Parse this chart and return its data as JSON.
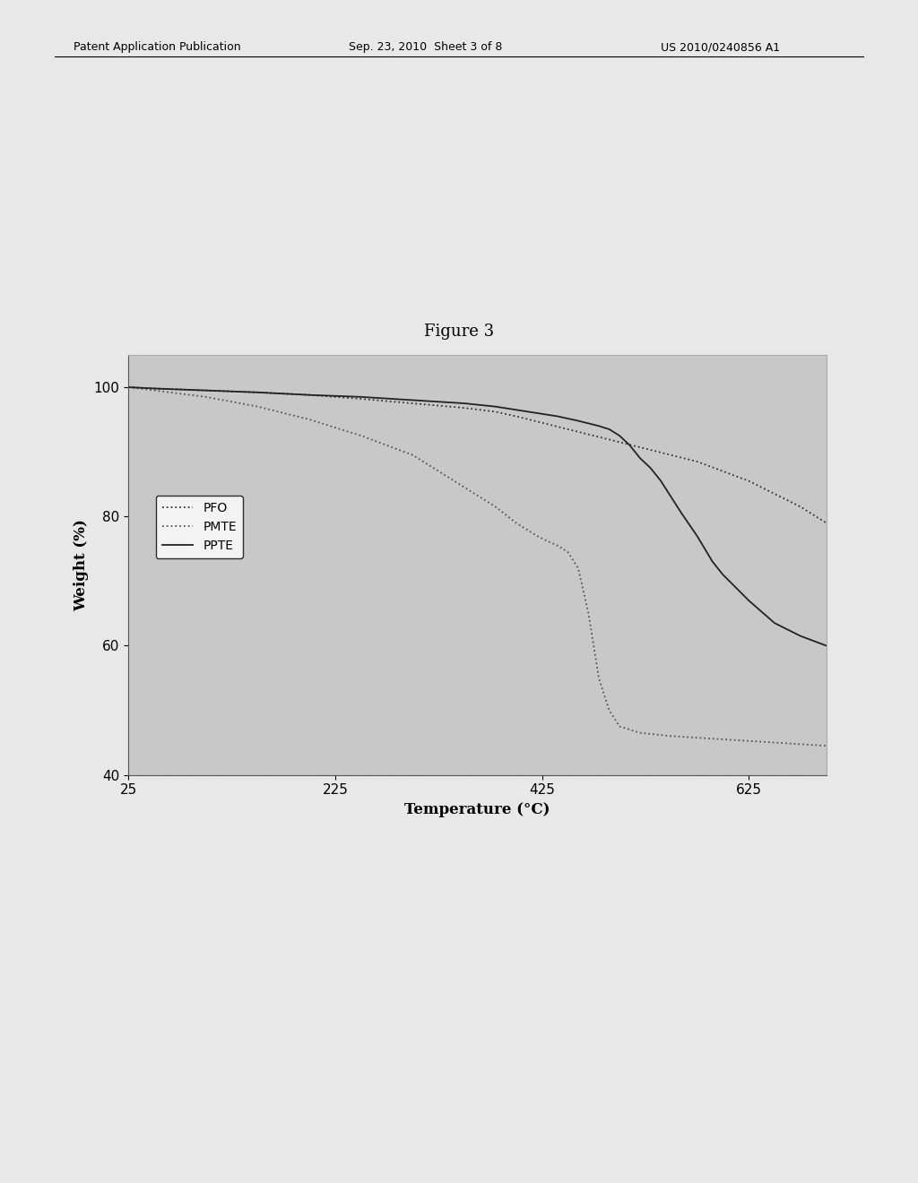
{
  "title": "Figure 3",
  "xlabel": "Temperature (°C)",
  "ylabel": "Weight (%)",
  "xlim": [
    25,
    700
  ],
  "ylim": [
    40,
    105
  ],
  "xticks": [
    25,
    225,
    425,
    625
  ],
  "yticks": [
    40,
    60,
    80,
    100
  ],
  "plot_bg_color": "#c8c8c8",
  "page_color": "#e8e8e8",
  "header_left": "Patent Application Publication",
  "header_mid": "Sep. 23, 2010  Sheet 3 of 8",
  "header_right": "US 2010/0240856 A1",
  "series": [
    {
      "name": "PFO",
      "color": "#333333",
      "linestyle": "dotted",
      "data_x": [
        25,
        50,
        100,
        150,
        200,
        250,
        300,
        350,
        380,
        400,
        425,
        450,
        475,
        500,
        525,
        550,
        575,
        600,
        625,
        650,
        675,
        700
      ],
      "data_y": [
        100,
        99.8,
        99.5,
        99.2,
        98.8,
        98.2,
        97.5,
        96.8,
        96.2,
        95.5,
        94.5,
        93.5,
        92.5,
        91.5,
        90.5,
        89.5,
        88.5,
        87.0,
        85.5,
        83.5,
        81.5,
        79.0
      ]
    },
    {
      "name": "PMTE",
      "color": "#555555",
      "linestyle": "dotted",
      "data_x": [
        25,
        50,
        100,
        150,
        200,
        250,
        300,
        320,
        340,
        360,
        380,
        400,
        410,
        420,
        430,
        440,
        450,
        460,
        470,
        480,
        490,
        500,
        520,
        550,
        600,
        650,
        700
      ],
      "data_y": [
        100,
        99.5,
        98.5,
        97.0,
        95.0,
        92.5,
        89.5,
        87.5,
        85.5,
        83.5,
        81.5,
        79.0,
        78.0,
        77.0,
        76.2,
        75.5,
        74.5,
        72.0,
        65.0,
        55.0,
        50.0,
        47.5,
        46.5,
        46.0,
        45.5,
        45.0,
        44.5
      ]
    },
    {
      "name": "PPTE",
      "color": "#222222",
      "linestyle": "solid",
      "data_x": [
        25,
        50,
        100,
        150,
        200,
        250,
        300,
        350,
        380,
        400,
        420,
        440,
        460,
        480,
        490,
        500,
        510,
        520,
        530,
        540,
        550,
        560,
        575,
        590,
        600,
        625,
        650,
        675,
        700
      ],
      "data_y": [
        100,
        99.8,
        99.5,
        99.2,
        98.8,
        98.5,
        98.0,
        97.5,
        97.0,
        96.5,
        96.0,
        95.5,
        94.8,
        94.0,
        93.5,
        92.5,
        91.0,
        89.0,
        87.5,
        85.5,
        83.0,
        80.5,
        77.0,
        73.0,
        71.0,
        67.0,
        63.5,
        61.5,
        60.0
      ]
    }
  ],
  "figure_title_fontsize": 13,
  "axis_label_fontsize": 12,
  "tick_fontsize": 11,
  "legend_fontsize": 10,
  "header_fontsize": 9
}
